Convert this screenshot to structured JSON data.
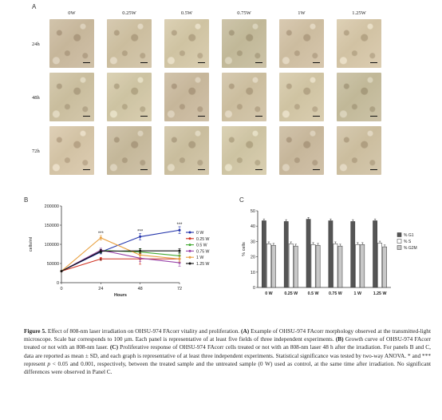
{
  "panel_a": {
    "letter": "A",
    "columns": [
      "0W",
      "0.25W",
      "0.5W",
      "0.75W",
      "1W",
      "1.25W"
    ],
    "rows": [
      "24h",
      "48h",
      "72h"
    ]
  },
  "panel_b": {
    "letter": "B"
  },
  "panel_c": {
    "letter": "C"
  },
  "caption": {
    "figure_label": "Figure 5.",
    "title": " Effect of 808-nm laser irradiation on OHSU-974 FAcorr vitality and proliferation. ",
    "a_label": "(A)",
    "a_text": " Example of OHSU-974 FAcorr morphology observed at the transmitted-light microscope. Scale bar corresponds to 100 µm. Each panel is representative of at least five fields of three independent experiments. ",
    "b_label": "(B)",
    "b_text": " Growth curve of OHSU-974 FAcorr treated or not with an 808-nm laser. ",
    "c_label": "(C)",
    "c_text": " Proliferative response of OHSU-974 FAcorr cells treated or not with an 808-nm laser 48 h after the irradiation. For panels B and C, data are reported as mean ± SD, and each graph is representative of at least three independent experiments. Statistical significance was tested by two-way ANOVA. * and *** represent ",
    "p_symbol": "p",
    "tail": " < 0.05 and 0.001, respectively, between the treated sample and the untreated sample (0 W) used as control, at the same time after irradiation. No significant differences were observed in Panel C."
  },
  "chart_data": [
    {
      "type": "line",
      "xlabel": "Hours",
      "ylabel": "cells/ml",
      "x": [
        0,
        24,
        48,
        72
      ],
      "xlim": [
        0,
        72
      ],
      "ylim": [
        0,
        200000
      ],
      "yticks": [
        "0",
        "50000",
        "100000",
        "150000",
        "200000"
      ],
      "xticks": [
        "0",
        "24",
        "48",
        "72"
      ],
      "legend_position": "right",
      "series": [
        {
          "name": "0 W",
          "color": "#2233aa",
          "values": [
            30000,
            80000,
            120000,
            137000
          ],
          "err": [
            0,
            5000,
            8000,
            9000
          ]
        },
        {
          "name": "0.25 W",
          "color": "#d03020",
          "values": [
            30000,
            62000,
            62000,
            62000
          ],
          "err": [
            0,
            4000,
            14000,
            10000
          ]
        },
        {
          "name": "0.5 W",
          "color": "#44aa33",
          "values": [
            30000,
            84000,
            80000,
            70000
          ],
          "err": [
            0,
            6000,
            8000,
            8000
          ]
        },
        {
          "name": "0.75 W",
          "color": "#9944aa",
          "values": [
            30000,
            85000,
            64000,
            52000
          ],
          "err": [
            0,
            5000,
            9000,
            9000
          ]
        },
        {
          "name": "1 W",
          "color": "#e8a040",
          "values": [
            30000,
            117000,
            72000,
            62000
          ],
          "err": [
            0,
            6000,
            7000,
            8000
          ]
        },
        {
          "name": "1.25 W",
          "color": "#111111",
          "values": [
            30000,
            82000,
            83000,
            83000
          ],
          "err": [
            0,
            5000,
            6000,
            6000
          ]
        }
      ],
      "annotations": [
        {
          "x": 24,
          "text": "***",
          "y": 125000
        },
        {
          "x": 24,
          "text": "*",
          "y": 53000
        },
        {
          "x": 48,
          "text": "***",
          "y": 130000
        },
        {
          "x": 72,
          "text": "***",
          "y": 148000
        }
      ]
    },
    {
      "type": "bar",
      "ylabel": "% cells",
      "ylim": [
        0,
        50
      ],
      "yticks": [
        "0",
        "10",
        "20",
        "30",
        "40",
        "50"
      ],
      "categories": [
        "0 W",
        "0.25 W",
        "0.5 W",
        "0.75 W",
        "1 W",
        "1.25 W"
      ],
      "legend_position": "right",
      "series": [
        {
          "name": "% G1",
          "color": "#555555",
          "values": [
            43.5,
            43,
            44.5,
            43.5,
            43,
            43.5
          ]
        },
        {
          "name": "% S",
          "color": "#ffffff",
          "values": [
            28.5,
            28.5,
            28,
            28.5,
            28,
            29
          ]
        },
        {
          "name": "% G2M",
          "color": "#c8c8c8",
          "values": [
            27.5,
            27,
            27.5,
            27,
            28,
            26.5
          ]
        }
      ]
    }
  ]
}
